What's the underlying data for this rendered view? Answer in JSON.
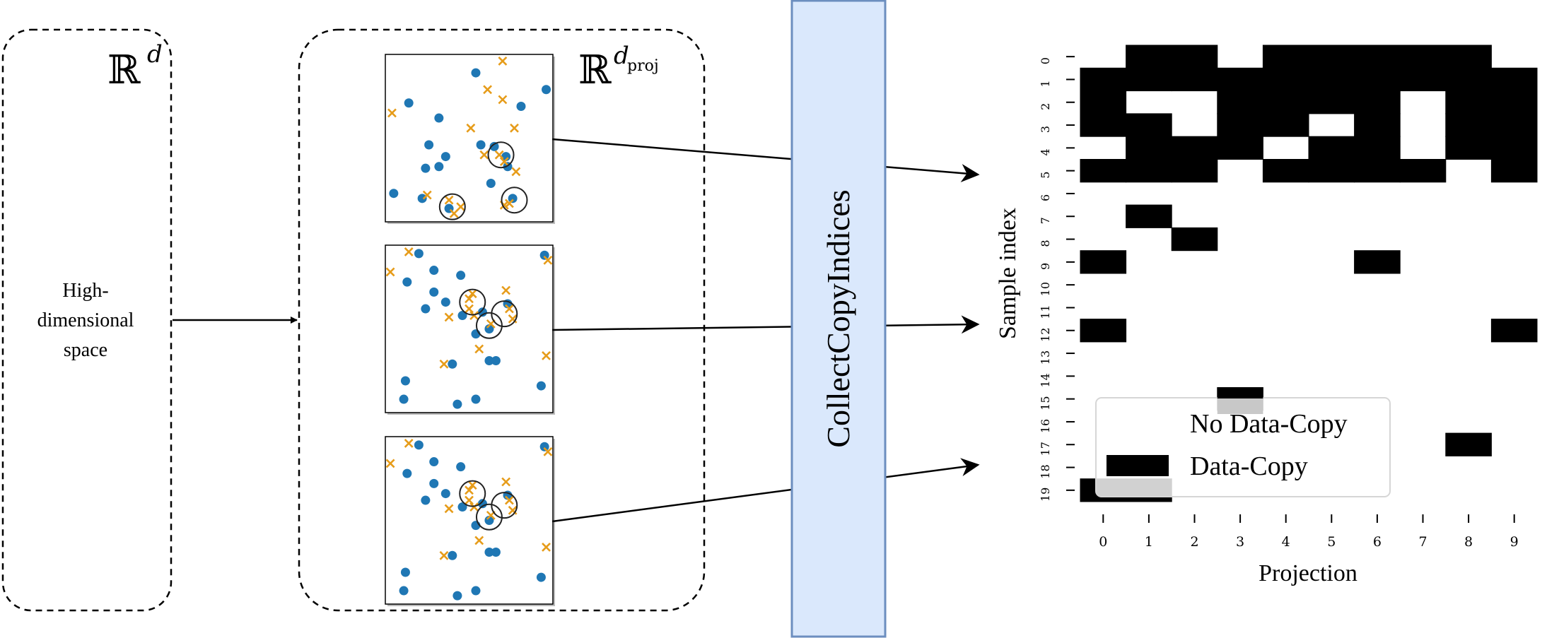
{
  "high_dim_box": {
    "space_label": "ℝ",
    "space_superscript": "d",
    "caption_lines": [
      "High-",
      "dimensional",
      "space"
    ]
  },
  "proj_box": {
    "space_label": "ℝ",
    "space_superscript": "d",
    "space_sub": "proj"
  },
  "scatter_plots": [
    {
      "dots": [
        [
          0.54,
          0.11
        ],
        [
          0.96,
          0.21
        ],
        [
          0.14,
          0.29
        ],
        [
          0.81,
          0.31
        ],
        [
          0.32,
          0.38
        ],
        [
          0.26,
          0.54
        ],
        [
          0.36,
          0.61
        ],
        [
          0.57,
          0.54
        ],
        [
          0.65,
          0.55
        ],
        [
          0.72,
          0.61
        ],
        [
          0.73,
          0.67
        ],
        [
          0.24,
          0.68
        ],
        [
          0.32,
          0.67
        ],
        [
          0.63,
          0.77
        ],
        [
          0.05,
          0.83
        ],
        [
          0.22,
          0.86
        ],
        [
          0.38,
          0.92
        ],
        [
          0.76,
          0.86
        ]
      ],
      "crosses": [
        [
          0.7,
          0.04
        ],
        [
          0.61,
          0.21
        ],
        [
          0.7,
          0.27
        ],
        [
          0.04,
          0.35
        ],
        [
          0.77,
          0.44
        ],
        [
          0.51,
          0.44
        ],
        [
          0.59,
          0.6
        ],
        [
          0.71,
          0.64
        ],
        [
          0.68,
          0.6
        ],
        [
          0.78,
          0.7
        ],
        [
          0.25,
          0.84
        ],
        [
          0.38,
          0.87
        ],
        [
          0.45,
          0.91
        ],
        [
          0.41,
          0.95
        ],
        [
          0.71,
          0.9
        ],
        [
          0.74,
          0.89
        ]
      ],
      "circles": [
        [
          0.69,
          0.6
        ],
        [
          0.4,
          0.91
        ],
        [
          0.77,
          0.87
        ]
      ]
    },
    {
      "dots": [
        [
          0.2,
          0.05
        ],
        [
          0.29,
          0.15
        ],
        [
          0.45,
          0.18
        ],
        [
          0.13,
          0.22
        ],
        [
          0.29,
          0.28
        ],
        [
          0.36,
          0.34
        ],
        [
          0.73,
          0.35
        ],
        [
          0.24,
          0.38
        ],
        [
          0.46,
          0.42
        ],
        [
          0.58,
          0.4
        ],
        [
          0.95,
          0.06
        ],
        [
          0.62,
          0.5
        ],
        [
          0.54,
          0.53
        ],
        [
          0.4,
          0.71
        ],
        [
          0.62,
          0.69
        ],
        [
          0.66,
          0.69
        ],
        [
          0.12,
          0.81
        ],
        [
          0.93,
          0.84
        ],
        [
          0.11,
          0.92
        ],
        [
          0.54,
          0.92
        ],
        [
          0.43,
          0.95
        ]
      ],
      "crosses": [
        [
          0.14,
          0.04
        ],
        [
          0.03,
          0.16
        ],
        [
          0.5,
          0.32
        ],
        [
          0.52,
          0.29
        ],
        [
          0.72,
          0.27
        ],
        [
          0.74,
          0.38
        ],
        [
          0.53,
          0.42
        ],
        [
          0.5,
          0.38
        ],
        [
          0.38,
          0.43
        ],
        [
          0.63,
          0.47
        ],
        [
          0.76,
          0.44
        ],
        [
          0.56,
          0.62
        ],
        [
          0.96,
          0.66
        ],
        [
          0.35,
          0.71
        ],
        [
          0.97,
          0.09
        ]
      ],
      "circles": [
        [
          0.52,
          0.34
        ],
        [
          0.71,
          0.41
        ],
        [
          0.62,
          0.48
        ]
      ]
    },
    {
      "dots": [
        [
          0.2,
          0.05
        ],
        [
          0.29,
          0.15
        ],
        [
          0.45,
          0.18
        ],
        [
          0.13,
          0.22
        ],
        [
          0.29,
          0.28
        ],
        [
          0.36,
          0.34
        ],
        [
          0.73,
          0.35
        ],
        [
          0.24,
          0.38
        ],
        [
          0.46,
          0.42
        ],
        [
          0.58,
          0.4
        ],
        [
          0.95,
          0.06
        ],
        [
          0.62,
          0.5
        ],
        [
          0.54,
          0.53
        ],
        [
          0.4,
          0.71
        ],
        [
          0.62,
          0.69
        ],
        [
          0.66,
          0.69
        ],
        [
          0.12,
          0.81
        ],
        [
          0.93,
          0.84
        ],
        [
          0.11,
          0.92
        ],
        [
          0.54,
          0.92
        ],
        [
          0.43,
          0.95
        ]
      ],
      "crosses": [
        [
          0.14,
          0.04
        ],
        [
          0.03,
          0.16
        ],
        [
          0.5,
          0.32
        ],
        [
          0.52,
          0.29
        ],
        [
          0.72,
          0.27
        ],
        [
          0.74,
          0.38
        ],
        [
          0.53,
          0.42
        ],
        [
          0.5,
          0.38
        ],
        [
          0.38,
          0.43
        ],
        [
          0.63,
          0.47
        ],
        [
          0.76,
          0.44
        ],
        [
          0.56,
          0.62
        ],
        [
          0.96,
          0.66
        ],
        [
          0.35,
          0.71
        ],
        [
          0.97,
          0.09
        ]
      ],
      "circles": [
        [
          0.52,
          0.34
        ],
        [
          0.71,
          0.41
        ],
        [
          0.62,
          0.48
        ]
      ]
    }
  ],
  "module": {
    "label": "CollectCopyIndices",
    "fill": "#dae8fc",
    "stroke": "#6c8ebf"
  },
  "colors": {
    "dot": "#1f77b4",
    "cross": "#e69c1a",
    "copy_cell": "#000000",
    "partial_cell": "#c8c8c8"
  },
  "chart_data": {
    "type": "heatmap",
    "xlabel": "Projection",
    "ylabel": "Sample index",
    "x_ticks": [
      "0",
      "1",
      "2",
      "3",
      "4",
      "5",
      "6",
      "7",
      "8",
      "9"
    ],
    "y_ticks": [
      "0",
      "1",
      "2",
      "3",
      "4",
      "5",
      "6",
      "7",
      "8",
      "9",
      "10",
      "11",
      "12",
      "13",
      "14",
      "15",
      "16",
      "17",
      "18",
      "19"
    ],
    "legend": {
      "position": "bottom-right",
      "items": [
        "No Data-Copy",
        "Data-Copy"
      ]
    },
    "values": [
      [
        0,
        1,
        1,
        0,
        1,
        1,
        1,
        1,
        1,
        0
      ],
      [
        1,
        1,
        1,
        1,
        1,
        1,
        1,
        1,
        1,
        1
      ],
      [
        1,
        0,
        0,
        1,
        1,
        1,
        1,
        0,
        1,
        1
      ],
      [
        1,
        1,
        0,
        1,
        1,
        0,
        1,
        0,
        1,
        1
      ],
      [
        0,
        1,
        1,
        1,
        0,
        1,
        1,
        0,
        1,
        1
      ],
      [
        1,
        1,
        1,
        0,
        1,
        1,
        1,
        1,
        0,
        1
      ],
      [
        0,
        0,
        0,
        0,
        0,
        0,
        0,
        0,
        0,
        0
      ],
      [
        0,
        1,
        0,
        0,
        0,
        0,
        0,
        0,
        0,
        0
      ],
      [
        0,
        0,
        1,
        0,
        0,
        0,
        0,
        0,
        0,
        0
      ],
      [
        1,
        0,
        0,
        0,
        0,
        0,
        1,
        0,
        0,
        0
      ],
      [
        0,
        0,
        0,
        0,
        0,
        0,
        0,
        0,
        0,
        0
      ],
      [
        0,
        0,
        0,
        0,
        0,
        0,
        0,
        0,
        0,
        0
      ],
      [
        1,
        0,
        0,
        0,
        0,
        0,
        0,
        0,
        0,
        1
      ],
      [
        0,
        0,
        0,
        0,
        0,
        0,
        0,
        0,
        0,
        0
      ],
      [
        0,
        0,
        0,
        0,
        0,
        0,
        0,
        0,
        0,
        0
      ],
      [
        0,
        0,
        0,
        1,
        0,
        0,
        0,
        0,
        0,
        0
      ],
      [
        0,
        0,
        0,
        0,
        0,
        0,
        0,
        0,
        0,
        0
      ],
      [
        0,
        0,
        0,
        0,
        0,
        0,
        0,
        0,
        1,
        0
      ],
      [
        0,
        0,
        0,
        0,
        0,
        0,
        0,
        0,
        0,
        0
      ],
      [
        1,
        1,
        0,
        0,
        0,
        0,
        0,
        0,
        0,
        0
      ]
    ]
  }
}
